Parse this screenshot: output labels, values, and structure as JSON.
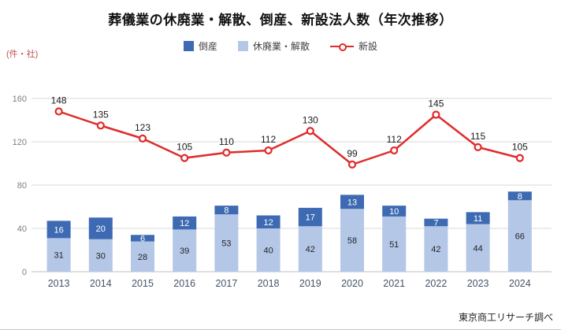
{
  "title": "葬儀業の休廃業・解散、倒産、新設法人数（年次推移）",
  "source": "東京商工リサーチ調べ",
  "legend": [
    {
      "label": "倒産",
      "color": "#3d6ab2",
      "type": "square"
    },
    {
      "label": "休廃業・解散",
      "color": "#b4c7e7",
      "type": "square"
    },
    {
      "label": "新設",
      "color": "#e02b2b",
      "type": "line"
    }
  ],
  "chart_data": {
    "type": "bar",
    "subtype": "stacked-bar-with-line-overlay",
    "title": "葬儀業の休廃業・解散、倒産、新設法人数（年次推移）",
    "unit_label": "(件・社)",
    "categories": [
      "2013",
      "2014",
      "2015",
      "2016",
      "2017",
      "2018",
      "2019",
      "2020",
      "2021",
      "2022",
      "2023",
      "2024"
    ],
    "series": [
      {
        "name": "倒産",
        "render": "bar",
        "stack": "top",
        "color": "#3d6ab2",
        "label_color": "#ffffff",
        "values": [
          16,
          20,
          6,
          12,
          8,
          12,
          17,
          13,
          10,
          7,
          11,
          8
        ]
      },
      {
        "name": "休廃業・解散",
        "render": "bar",
        "stack": "bottom",
        "color": "#b4c7e7",
        "label_color": "#262626",
        "values": [
          31,
          30,
          28,
          39,
          53,
          40,
          42,
          58,
          51,
          42,
          44,
          66
        ]
      },
      {
        "name": "新設",
        "render": "line",
        "color": "#e02b2b",
        "label_color": "#1a1a1a",
        "values": [
          148,
          135,
          123,
          105,
          110,
          112,
          130,
          99,
          112,
          145,
          115,
          105
        ]
      }
    ],
    "ylim": [
      0,
      160
    ],
    "yticks": [
      0,
      40,
      80,
      120,
      160
    ],
    "grid": true,
    "legend_position": "top",
    "colors": {
      "grid": "#d9d9d9",
      "axis_line": "#bfbfbf",
      "tick_text": "#7f7f7f",
      "category_text": "#44546a"
    }
  }
}
